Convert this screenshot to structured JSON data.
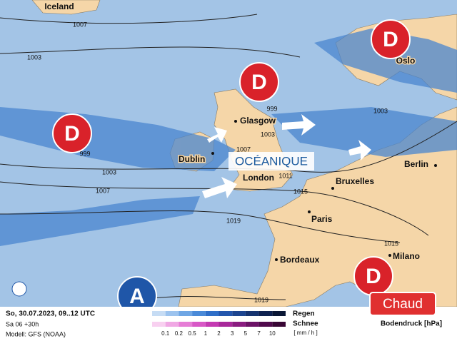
{
  "map": {
    "places": [
      "Iceland",
      "Oslo",
      "Glasgow",
      "Dublin",
      "London",
      "Bruxelles",
      "Berlin",
      "Paris",
      "Milano",
      "Bordeaux"
    ],
    "isobars": [
      1007,
      1003,
      999,
      1003,
      1007,
      1003,
      1007,
      1011,
      1003,
      1015,
      1019,
      1015,
      1019,
      999
    ],
    "centers": [
      "D",
      "D",
      "D",
      "D",
      "A"
    ],
    "region_label": "OCÉANIQUE",
    "badge": "Chaud"
  },
  "footer": {
    "date": "So, 30.07.2023, 09..12 UTC",
    "run": "Sa 06 +30h",
    "model": "Modell: GFS (NOAA)"
  },
  "legend": {
    "rain": "Regen",
    "snow": "Schnee",
    "unit": "[ mm / h ]",
    "scale": [
      0.1,
      0.2,
      0.5,
      1,
      2,
      3,
      5,
      7,
      10
    ],
    "pressure": "Bodendruck [hPa]"
  }
}
